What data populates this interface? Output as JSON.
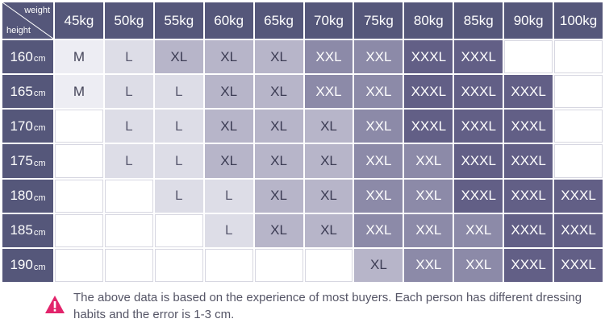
{
  "corner": {
    "weight_label": "weight",
    "height_label": "height"
  },
  "weights": [
    "45kg",
    "50kg",
    "55kg",
    "60kg",
    "65kg",
    "70kg",
    "75kg",
    "80kg",
    "85kg",
    "90kg",
    "100kg"
  ],
  "height_unit": "cm",
  "rows": [
    {
      "height": "160",
      "sizes": [
        "M",
        "L",
        "XL",
        "XL",
        "XL",
        "XXL",
        "XXL",
        "XXXL",
        "XXXL",
        "",
        ""
      ]
    },
    {
      "height": "165",
      "sizes": [
        "M",
        "L",
        "L",
        "XL",
        "XL",
        "XXL",
        "XXL",
        "XXXL",
        "XXXL",
        "XXXL",
        ""
      ]
    },
    {
      "height": "170",
      "sizes": [
        "",
        "L",
        "L",
        "XL",
        "XL",
        "XL",
        "XXL",
        "XXXL",
        "XXXL",
        "XXXL",
        ""
      ]
    },
    {
      "height": "175",
      "sizes": [
        "",
        "L",
        "L",
        "XL",
        "XL",
        "XL",
        "XXL",
        "XXL",
        "XXXL",
        "XXXL",
        ""
      ]
    },
    {
      "height": "180",
      "sizes": [
        "",
        "",
        "L",
        "L",
        "XL",
        "XL",
        "XXL",
        "XXL",
        "XXXL",
        "XXXL",
        "XXXL"
      ]
    },
    {
      "height": "185",
      "sizes": [
        "",
        "",
        "",
        "L",
        "XL",
        "XL",
        "XXL",
        "XXL",
        "XXL",
        "XXXL",
        "XXXL"
      ]
    },
    {
      "height": "190",
      "sizes": [
        "",
        "",
        "",
        "",
        "",
        "",
        "XL",
        "XXL",
        "XXL",
        "XXXL",
        "XXXL"
      ]
    }
  ],
  "colors": {
    "header": "#55577a",
    "M": "#ededf3",
    "L": "#dddde7",
    "XL": "#b7b5c9",
    "XXL": "#8c8aa8",
    "XXXL": "#625f86",
    "warning": "#e2246b"
  },
  "note": {
    "icon": "warning-triangle-icon",
    "text": "The above data is based on the experience of most buyers. Each person has different dressing habits and the error is 1-3 cm."
  }
}
